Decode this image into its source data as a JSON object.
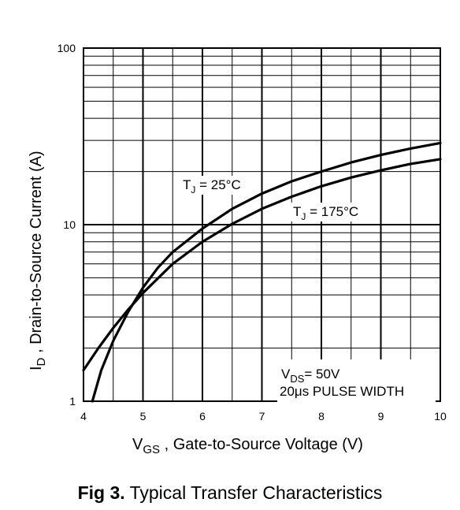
{
  "caption": {
    "figure_label": "Fig 3.",
    "text": "Typical Transfer Characteristics"
  },
  "chart_data": {
    "type": "line",
    "x_scale": "linear",
    "y_scale": "log",
    "xlim": [
      4,
      10
    ],
    "ylim": [
      1,
      100
    ],
    "x_major_ticks": [
      "4",
      "5",
      "6",
      "7",
      "8",
      "9",
      "10"
    ],
    "y_major_ticks": [
      "1",
      "10",
      "100"
    ],
    "grid": true,
    "xlabel": {
      "main": "V",
      "sub": "GS",
      "rest": " , Gate-to-Source Voltage (V)"
    },
    "ylabel": {
      "main": "I",
      "sub": "D",
      "rest": " , Drain-to-Source Current (A)"
    },
    "annotation": {
      "line1_main": "V",
      "line1_sub": "DS",
      "line1_rest": "= 50V",
      "line2": "20μs PULSE WIDTH"
    },
    "series": [
      {
        "name": "T_J = 25°C",
        "label_main": "T",
        "label_sub": "J",
        "label_rest": " = 25°C",
        "x": [
          4.15,
          4.3,
          4.5,
          4.75,
          5.0,
          5.25,
          5.5,
          6.0,
          6.5,
          7.0,
          7.5,
          8.0,
          8.5,
          9.0,
          9.5,
          10.0
        ],
        "y": [
          1.0,
          1.5,
          2.2,
          3.2,
          4.4,
          5.7,
          7.0,
          9.5,
          12.3,
          15.0,
          17.6,
          20.0,
          22.5,
          24.8,
          27.0,
          29.0
        ]
      },
      {
        "name": "T_J = 175°C",
        "label_main": "T",
        "label_sub": "J",
        "label_rest": " = 175°C",
        "x": [
          4.0,
          4.25,
          4.5,
          4.75,
          5.0,
          5.5,
          6.0,
          6.5,
          7.0,
          7.5,
          8.0,
          8.5,
          9.0,
          9.5,
          10.0
        ],
        "y": [
          1.5,
          2.0,
          2.6,
          3.3,
          4.1,
          6.0,
          8.0,
          10.1,
          12.3,
          14.4,
          16.5,
          18.5,
          20.3,
          22.1,
          23.5
        ]
      }
    ]
  }
}
